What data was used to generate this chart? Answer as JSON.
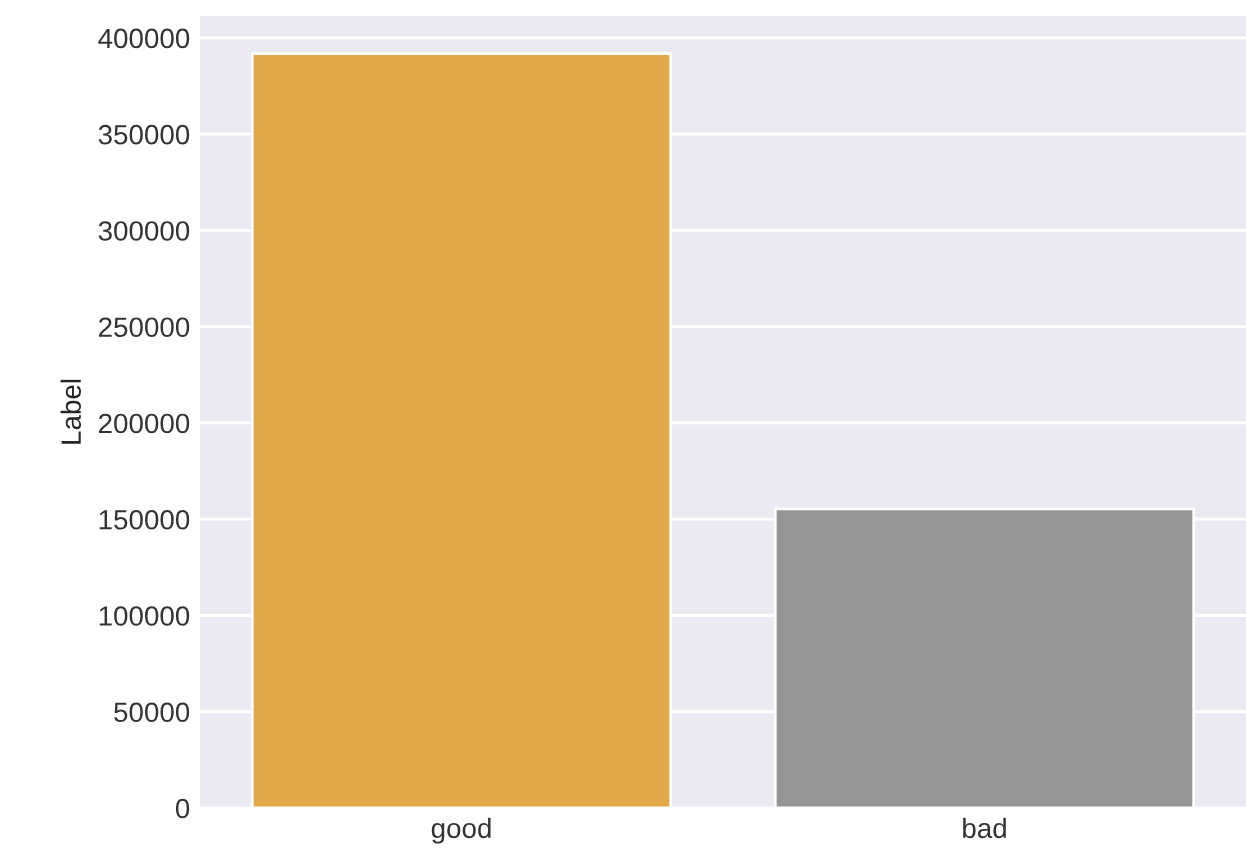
{
  "chart_data": {
    "type": "bar",
    "ylabel": "Label",
    "categories": [
      "good",
      "bad"
    ],
    "values": [
      391900,
      155400
    ],
    "colors": [
      "#e0a847",
      "#959597"
    ],
    "ylim": [
      0,
      411400
    ],
    "yticks": [
      0,
      50000,
      100000,
      150000,
      200000,
      250000,
      300000,
      350000,
      400000
    ],
    "grid": "y"
  }
}
